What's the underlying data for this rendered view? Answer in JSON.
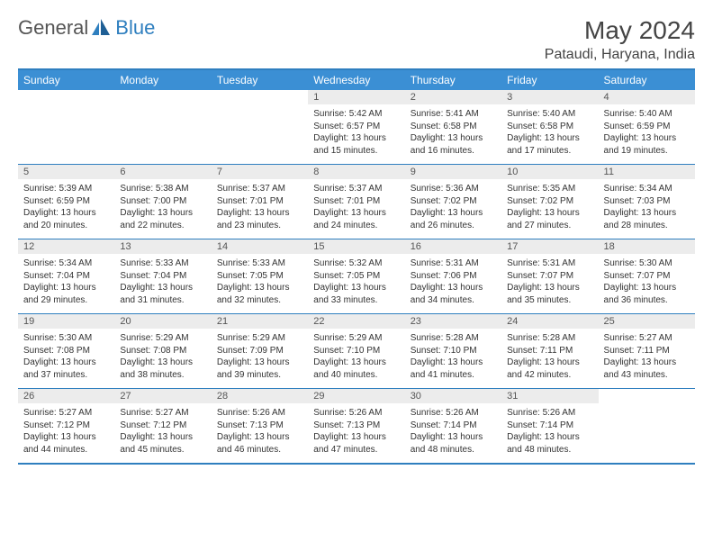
{
  "brand": {
    "left": "General",
    "right": "Blue"
  },
  "title": "May 2024",
  "location": "Pataudi, Haryana, India",
  "colors": {
    "header_bg": "#3b8fd4",
    "border": "#2f7fbf",
    "daynum_bg": "#ececec",
    "text": "#333333"
  },
  "day_headers": [
    "Sunday",
    "Monday",
    "Tuesday",
    "Wednesday",
    "Thursday",
    "Friday",
    "Saturday"
  ],
  "weeks": [
    [
      null,
      null,
      null,
      {
        "n": "1",
        "sr": "5:42 AM",
        "ss": "6:57 PM",
        "dl": "13 hours and 15 minutes."
      },
      {
        "n": "2",
        "sr": "5:41 AM",
        "ss": "6:58 PM",
        "dl": "13 hours and 16 minutes."
      },
      {
        "n": "3",
        "sr": "5:40 AM",
        "ss": "6:58 PM",
        "dl": "13 hours and 17 minutes."
      },
      {
        "n": "4",
        "sr": "5:40 AM",
        "ss": "6:59 PM",
        "dl": "13 hours and 19 minutes."
      }
    ],
    [
      {
        "n": "5",
        "sr": "5:39 AM",
        "ss": "6:59 PM",
        "dl": "13 hours and 20 minutes."
      },
      {
        "n": "6",
        "sr": "5:38 AM",
        "ss": "7:00 PM",
        "dl": "13 hours and 22 minutes."
      },
      {
        "n": "7",
        "sr": "5:37 AM",
        "ss": "7:01 PM",
        "dl": "13 hours and 23 minutes."
      },
      {
        "n": "8",
        "sr": "5:37 AM",
        "ss": "7:01 PM",
        "dl": "13 hours and 24 minutes."
      },
      {
        "n": "9",
        "sr": "5:36 AM",
        "ss": "7:02 PM",
        "dl": "13 hours and 26 minutes."
      },
      {
        "n": "10",
        "sr": "5:35 AM",
        "ss": "7:02 PM",
        "dl": "13 hours and 27 minutes."
      },
      {
        "n": "11",
        "sr": "5:34 AM",
        "ss": "7:03 PM",
        "dl": "13 hours and 28 minutes."
      }
    ],
    [
      {
        "n": "12",
        "sr": "5:34 AM",
        "ss": "7:04 PM",
        "dl": "13 hours and 29 minutes."
      },
      {
        "n": "13",
        "sr": "5:33 AM",
        "ss": "7:04 PM",
        "dl": "13 hours and 31 minutes."
      },
      {
        "n": "14",
        "sr": "5:33 AM",
        "ss": "7:05 PM",
        "dl": "13 hours and 32 minutes."
      },
      {
        "n": "15",
        "sr": "5:32 AM",
        "ss": "7:05 PM",
        "dl": "13 hours and 33 minutes."
      },
      {
        "n": "16",
        "sr": "5:31 AM",
        "ss": "7:06 PM",
        "dl": "13 hours and 34 minutes."
      },
      {
        "n": "17",
        "sr": "5:31 AM",
        "ss": "7:07 PM",
        "dl": "13 hours and 35 minutes."
      },
      {
        "n": "18",
        "sr": "5:30 AM",
        "ss": "7:07 PM",
        "dl": "13 hours and 36 minutes."
      }
    ],
    [
      {
        "n": "19",
        "sr": "5:30 AM",
        "ss": "7:08 PM",
        "dl": "13 hours and 37 minutes."
      },
      {
        "n": "20",
        "sr": "5:29 AM",
        "ss": "7:08 PM",
        "dl": "13 hours and 38 minutes."
      },
      {
        "n": "21",
        "sr": "5:29 AM",
        "ss": "7:09 PM",
        "dl": "13 hours and 39 minutes."
      },
      {
        "n": "22",
        "sr": "5:29 AM",
        "ss": "7:10 PM",
        "dl": "13 hours and 40 minutes."
      },
      {
        "n": "23",
        "sr": "5:28 AM",
        "ss": "7:10 PM",
        "dl": "13 hours and 41 minutes."
      },
      {
        "n": "24",
        "sr": "5:28 AM",
        "ss": "7:11 PM",
        "dl": "13 hours and 42 minutes."
      },
      {
        "n": "25",
        "sr": "5:27 AM",
        "ss": "7:11 PM",
        "dl": "13 hours and 43 minutes."
      }
    ],
    [
      {
        "n": "26",
        "sr": "5:27 AM",
        "ss": "7:12 PM",
        "dl": "13 hours and 44 minutes."
      },
      {
        "n": "27",
        "sr": "5:27 AM",
        "ss": "7:12 PM",
        "dl": "13 hours and 45 minutes."
      },
      {
        "n": "28",
        "sr": "5:26 AM",
        "ss": "7:13 PM",
        "dl": "13 hours and 46 minutes."
      },
      {
        "n": "29",
        "sr": "5:26 AM",
        "ss": "7:13 PM",
        "dl": "13 hours and 47 minutes."
      },
      {
        "n": "30",
        "sr": "5:26 AM",
        "ss": "7:14 PM",
        "dl": "13 hours and 48 minutes."
      },
      {
        "n": "31",
        "sr": "5:26 AM",
        "ss": "7:14 PM",
        "dl": "13 hours and 48 minutes."
      },
      null
    ]
  ],
  "labels": {
    "sunrise": "Sunrise: ",
    "sunset": "Sunset: ",
    "daylight": "Daylight: "
  }
}
